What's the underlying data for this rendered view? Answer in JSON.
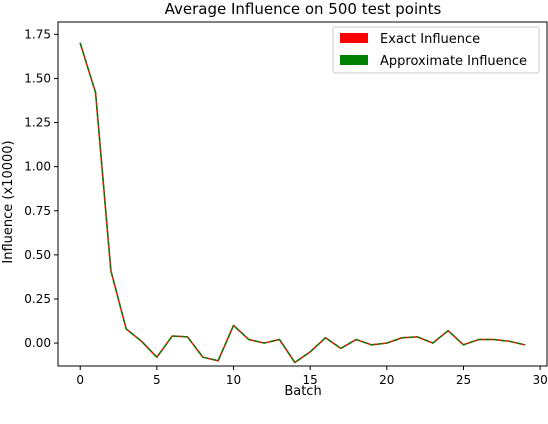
{
  "chart_data": {
    "type": "line",
    "title": "Average Influence on 500 test points",
    "xlabel": "Batch",
    "ylabel": "Influence (x10000)",
    "xlim": [
      -1.45,
      30.45
    ],
    "ylim": [
      -0.13,
      1.82
    ],
    "xticks": [
      0,
      5,
      10,
      15,
      20,
      25,
      30
    ],
    "yticks": [
      0.0,
      0.25,
      0.5,
      0.75,
      1.0,
      1.25,
      1.5,
      1.75
    ],
    "ytick_labels": [
      "0.00",
      "0.25",
      "0.50",
      "0.75",
      "1.00",
      "1.25",
      "1.50",
      "1.75"
    ],
    "grid": false,
    "legend_position": "top-right",
    "x": [
      0,
      1,
      2,
      3,
      4,
      5,
      6,
      7,
      8,
      9,
      10,
      11,
      12,
      13,
      14,
      15,
      16,
      17,
      18,
      19,
      20,
      21,
      22,
      23,
      24,
      25,
      26,
      27,
      28,
      29
    ],
    "series": [
      {
        "name": "Exact Influence",
        "color": "#ff0000",
        "style": "solid",
        "values": [
          1.7,
          1.42,
          0.41,
          0.08,
          0.01,
          -0.08,
          0.04,
          0.035,
          -0.08,
          -0.1,
          0.1,
          0.02,
          0.0,
          0.02,
          -0.11,
          -0.05,
          0.03,
          -0.03,
          0.02,
          -0.01,
          0.0,
          0.03,
          0.035,
          0.0,
          0.07,
          -0.01,
          0.02,
          0.02,
          0.01,
          -0.01
        ]
      },
      {
        "name": "Approximate Influence",
        "color": "#008000",
        "style": "dashed",
        "values": [
          1.7,
          1.42,
          0.41,
          0.08,
          0.01,
          -0.08,
          0.04,
          0.035,
          -0.08,
          -0.1,
          0.1,
          0.02,
          0.0,
          0.02,
          -0.11,
          -0.05,
          0.03,
          -0.03,
          0.02,
          -0.01,
          0.0,
          0.03,
          0.035,
          0.0,
          0.07,
          -0.01,
          0.02,
          0.02,
          0.01,
          -0.01
        ]
      }
    ]
  }
}
